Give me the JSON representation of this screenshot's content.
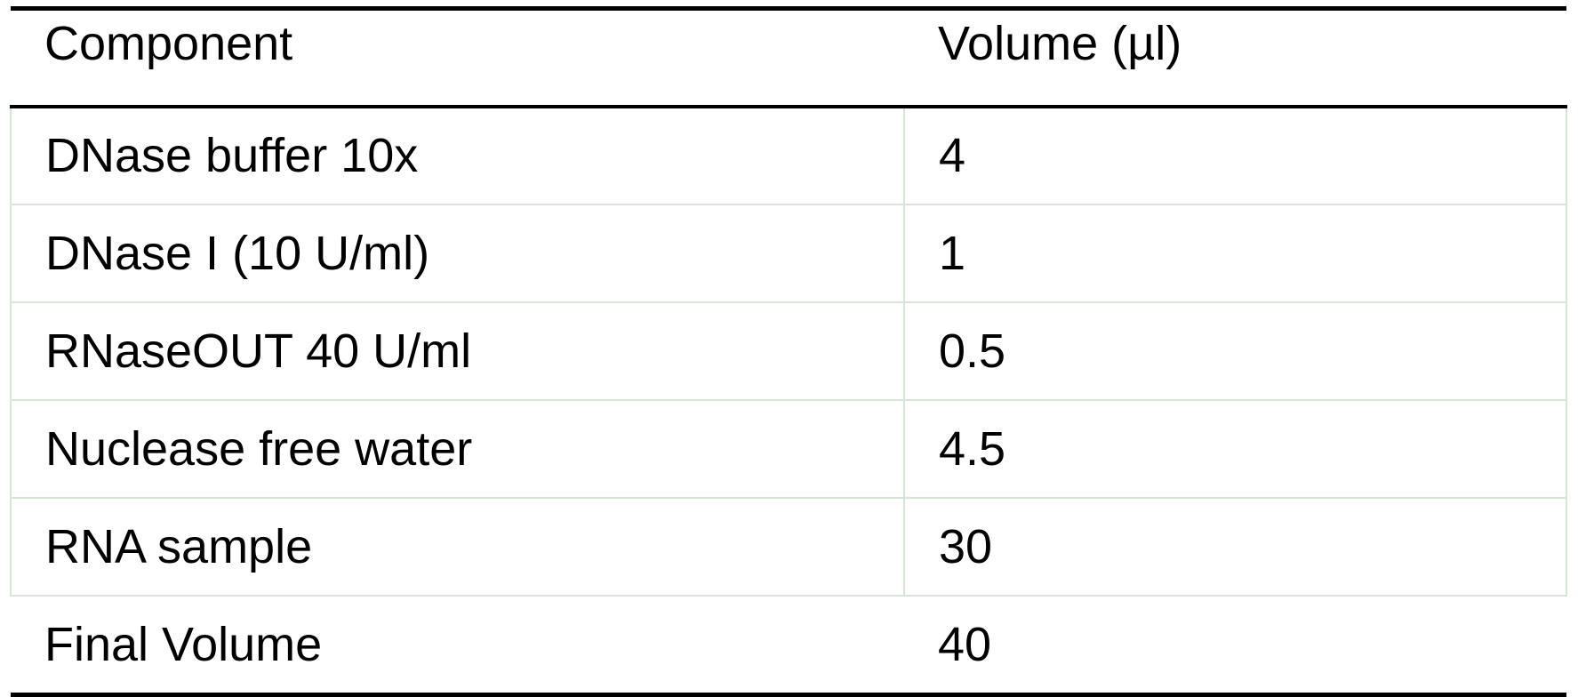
{
  "table": {
    "header": [
      "Component",
      "Volume (µl)"
    ],
    "rows": [
      [
        "DNase buffer 10x",
        4
      ],
      [
        "DNase I (10 U/ml)",
        1
      ],
      [
        "RNaseOUT 40 U/ml",
        0.5
      ],
      [
        "Nuclease free water",
        4.5
      ],
      [
        "RNA sample",
        30
      ],
      [
        "Final Volume",
        40
      ]
    ]
  }
}
